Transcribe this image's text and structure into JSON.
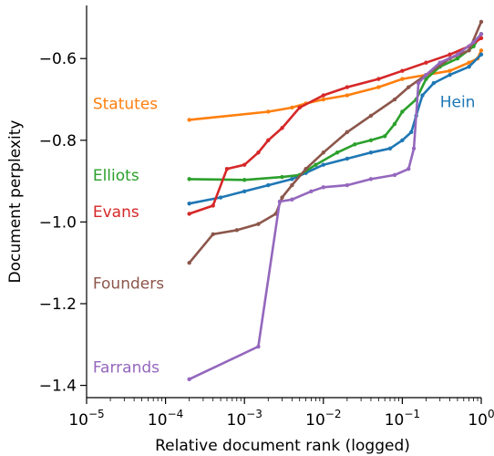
{
  "chart_data": {
    "type": "line",
    "xlabel": "Relative document rank (logged)",
    "ylabel": "Document perplexity",
    "x_scale": "log",
    "xlim": [
      1e-05,
      1
    ],
    "ylim": [
      -1.43,
      -0.47
    ],
    "x_ticks": [
      {
        "value": 1e-05,
        "base": "10",
        "exp": "−5"
      },
      {
        "value": 0.0001,
        "base": "10",
        "exp": "−4"
      },
      {
        "value": 0.001,
        "base": "10",
        "exp": "−3"
      },
      {
        "value": 0.01,
        "base": "10",
        "exp": "−2"
      },
      {
        "value": 0.1,
        "base": "10",
        "exp": "−1"
      },
      {
        "value": 1,
        "base": "10",
        "exp": "0"
      }
    ],
    "y_ticks": [
      {
        "value": -0.6,
        "label": "−0.6"
      },
      {
        "value": -0.8,
        "label": "−0.8"
      },
      {
        "value": -1.0,
        "label": "−1.0"
      },
      {
        "value": -1.2,
        "label": "−1.2"
      },
      {
        "value": -1.4,
        "label": "−1.4"
      }
    ],
    "grid": false,
    "legend": "inline labels next to each series",
    "series": [
      {
        "name": "Statutes",
        "color": "#ff7f0e",
        "label_anchor": [
          1.2e-05,
          -0.71
        ],
        "points": [
          [
            0.0002,
            -0.75
          ],
          [
            0.002,
            -0.73
          ],
          [
            0.004,
            -0.72
          ],
          [
            0.006,
            -0.71
          ],
          [
            0.01,
            -0.7
          ],
          [
            0.02,
            -0.69
          ],
          [
            0.05,
            -0.67
          ],
          [
            0.1,
            -0.65
          ],
          [
            0.2,
            -0.64
          ],
          [
            0.4,
            -0.63
          ],
          [
            0.7,
            -0.61
          ],
          [
            0.9,
            -0.6
          ],
          [
            1,
            -0.58
          ]
        ]
      },
      {
        "name": "Hein",
        "color": "#1f77b4",
        "label_anchor": [
          0.3,
          -0.705
        ],
        "points": [
          [
            0.0002,
            -0.955
          ],
          [
            0.0005,
            -0.94
          ],
          [
            0.001,
            -0.925
          ],
          [
            0.002,
            -0.91
          ],
          [
            0.004,
            -0.895
          ],
          [
            0.006,
            -0.88
          ],
          [
            0.01,
            -0.86
          ],
          [
            0.02,
            -0.845
          ],
          [
            0.04,
            -0.83
          ],
          [
            0.07,
            -0.82
          ],
          [
            0.1,
            -0.8
          ],
          [
            0.13,
            -0.78
          ],
          [
            0.15,
            -0.74
          ],
          [
            0.18,
            -0.69
          ],
          [
            0.25,
            -0.66
          ],
          [
            0.4,
            -0.64
          ],
          [
            0.7,
            -0.62
          ],
          [
            1,
            -0.59
          ]
        ]
      },
      {
        "name": "Elliots",
        "color": "#2ca02c",
        "label_anchor": [
          1.2e-05,
          -0.885
        ],
        "points": [
          [
            0.0002,
            -0.895
          ],
          [
            0.001,
            -0.897
          ],
          [
            0.003,
            -0.89
          ],
          [
            0.005,
            -0.885
          ],
          [
            0.008,
            -0.86
          ],
          [
            0.015,
            -0.83
          ],
          [
            0.025,
            -0.81
          ],
          [
            0.04,
            -0.8
          ],
          [
            0.06,
            -0.79
          ],
          [
            0.08,
            -0.76
          ],
          [
            0.1,
            -0.73
          ],
          [
            0.15,
            -0.7
          ],
          [
            0.2,
            -0.65
          ],
          [
            0.3,
            -0.62
          ],
          [
            0.5,
            -0.6
          ],
          [
            0.8,
            -0.57
          ],
          [
            1,
            -0.54
          ]
        ]
      },
      {
        "name": "Evans",
        "color": "#d62728",
        "label_anchor": [
          1.2e-05,
          -0.975
        ],
        "points": [
          [
            0.0002,
            -0.98
          ],
          [
            0.0004,
            -0.96
          ],
          [
            0.0006,
            -0.87
          ],
          [
            0.001,
            -0.86
          ],
          [
            0.0015,
            -0.83
          ],
          [
            0.002,
            -0.8
          ],
          [
            0.003,
            -0.77
          ],
          [
            0.005,
            -0.72
          ],
          [
            0.01,
            -0.69
          ],
          [
            0.02,
            -0.67
          ],
          [
            0.05,
            -0.65
          ],
          [
            0.1,
            -0.63
          ],
          [
            0.2,
            -0.61
          ],
          [
            0.4,
            -0.59
          ],
          [
            0.7,
            -0.57
          ],
          [
            1,
            -0.55
          ]
        ]
      },
      {
        "name": "Founders",
        "color": "#8c564b",
        "label_anchor": [
          1.2e-05,
          -1.15
        ],
        "points": [
          [
            0.0002,
            -1.1
          ],
          [
            0.0004,
            -1.03
          ],
          [
            0.0008,
            -1.02
          ],
          [
            0.0015,
            -1.005
          ],
          [
            0.0025,
            -0.98
          ],
          [
            0.003,
            -0.94
          ],
          [
            0.004,
            -0.91
          ],
          [
            0.006,
            -0.87
          ],
          [
            0.01,
            -0.83
          ],
          [
            0.02,
            -0.78
          ],
          [
            0.04,
            -0.74
          ],
          [
            0.08,
            -0.7
          ],
          [
            0.12,
            -0.67
          ],
          [
            0.2,
            -0.64
          ],
          [
            0.4,
            -0.6
          ],
          [
            0.7,
            -0.58
          ],
          [
            1,
            -0.51
          ]
        ]
      },
      {
        "name": "Farrands",
        "color": "#9467bd",
        "label_anchor": [
          1.2e-05,
          -1.355
        ],
        "points": [
          [
            0.0002,
            -1.385
          ],
          [
            0.0015,
            -1.305
          ],
          [
            0.0028,
            -0.95
          ],
          [
            0.004,
            -0.945
          ],
          [
            0.007,
            -0.925
          ],
          [
            0.01,
            -0.915
          ],
          [
            0.02,
            -0.91
          ],
          [
            0.04,
            -0.895
          ],
          [
            0.08,
            -0.885
          ],
          [
            0.12,
            -0.87
          ],
          [
            0.14,
            -0.82
          ],
          [
            0.16,
            -0.66
          ],
          [
            0.2,
            -0.64
          ],
          [
            0.3,
            -0.61
          ],
          [
            0.5,
            -0.59
          ],
          [
            0.8,
            -0.56
          ],
          [
            1,
            -0.54
          ]
        ]
      }
    ]
  }
}
